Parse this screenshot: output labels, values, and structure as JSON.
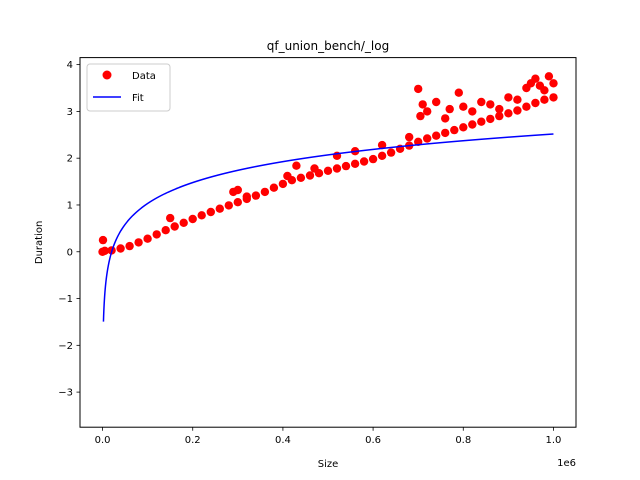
{
  "chart_data": {
    "type": "scatter",
    "title": "qf_union_bench/_log",
    "xlabel": "Size",
    "ylabel": "Duration",
    "x_offset_label": "1e6",
    "xlim": [
      -50000,
      1050000
    ],
    "ylim": [
      -3.75,
      4.15
    ],
    "x_ticks": [
      0,
      200000,
      400000,
      600000,
      800000,
      1000000
    ],
    "x_tick_labels": [
      "0.0",
      "0.2",
      "0.4",
      "0.6",
      "0.8",
      "1.0"
    ],
    "y_ticks": [
      -3,
      -2,
      -1,
      0,
      1,
      2,
      3,
      4
    ],
    "y_tick_labels": [
      "−3",
      "−2",
      "−1",
      "0",
      "1",
      "2",
      "3",
      "4"
    ],
    "grid": false,
    "legend_position": "upper-left",
    "colors": {
      "data": "#ff0000",
      "fit": "#0000ff"
    },
    "series": [
      {
        "name": "Data",
        "kind": "scatter",
        "x": [
          0,
          20000,
          40000,
          60000,
          80000,
          100000,
          120000,
          140000,
          160000,
          180000,
          200000,
          220000,
          240000,
          260000,
          280000,
          300000,
          320000,
          340000,
          360000,
          380000,
          400000,
          420000,
          440000,
          460000,
          480000,
          500000,
          520000,
          540000,
          560000,
          580000,
          600000,
          620000,
          640000,
          660000,
          680000,
          700000,
          720000,
          740000,
          760000,
          780000,
          800000,
          820000,
          840000,
          860000,
          880000,
          900000,
          920000,
          940000,
          960000,
          980000,
          1000000
        ],
        "y": [
          0.0,
          0.03,
          0.07,
          0.12,
          0.2,
          0.28,
          0.37,
          0.46,
          0.54,
          0.62,
          0.7,
          0.78,
          0.85,
          0.92,
          0.99,
          1.06,
          1.13,
          1.2,
          1.28,
          1.37,
          1.45,
          1.53,
          1.58,
          1.63,
          1.68,
          1.73,
          1.78,
          1.83,
          1.88,
          1.93,
          1.98,
          2.05,
          2.12,
          2.2,
          2.27,
          2.35,
          2.42,
          2.48,
          2.54,
          2.6,
          2.66,
          2.72,
          2.78,
          2.84,
          2.9,
          2.96,
          3.02,
          3.1,
          3.18,
          3.25,
          3.3
        ],
        "outliers_x": [
          1000,
          5000,
          150000,
          290000,
          300000,
          320000,
          410000,
          430000,
          470000,
          520000,
          560000,
          620000,
          680000,
          700000,
          705000,
          710000,
          720000,
          740000,
          760000,
          770000,
          790000,
          800000,
          820000,
          840000,
          860000,
          880000,
          900000,
          920000,
          940000,
          950000,
          960000,
          970000,
          980000,
          990000,
          1000000
        ],
        "outliers_y": [
          0.25,
          0.02,
          0.72,
          1.28,
          1.32,
          1.18,
          1.62,
          1.84,
          1.78,
          2.05,
          2.15,
          2.28,
          2.45,
          3.48,
          2.9,
          3.15,
          3.0,
          3.2,
          2.85,
          3.05,
          3.4,
          3.1,
          3.0,
          3.2,
          3.15,
          3.05,
          3.3,
          3.25,
          3.5,
          3.6,
          3.7,
          3.55,
          3.45,
          3.75,
          3.6
        ]
      },
      {
        "name": "Fit",
        "kind": "line",
        "model": "a*ln(x)+b",
        "a": 0.6455,
        "b": -6.4
      }
    ]
  }
}
